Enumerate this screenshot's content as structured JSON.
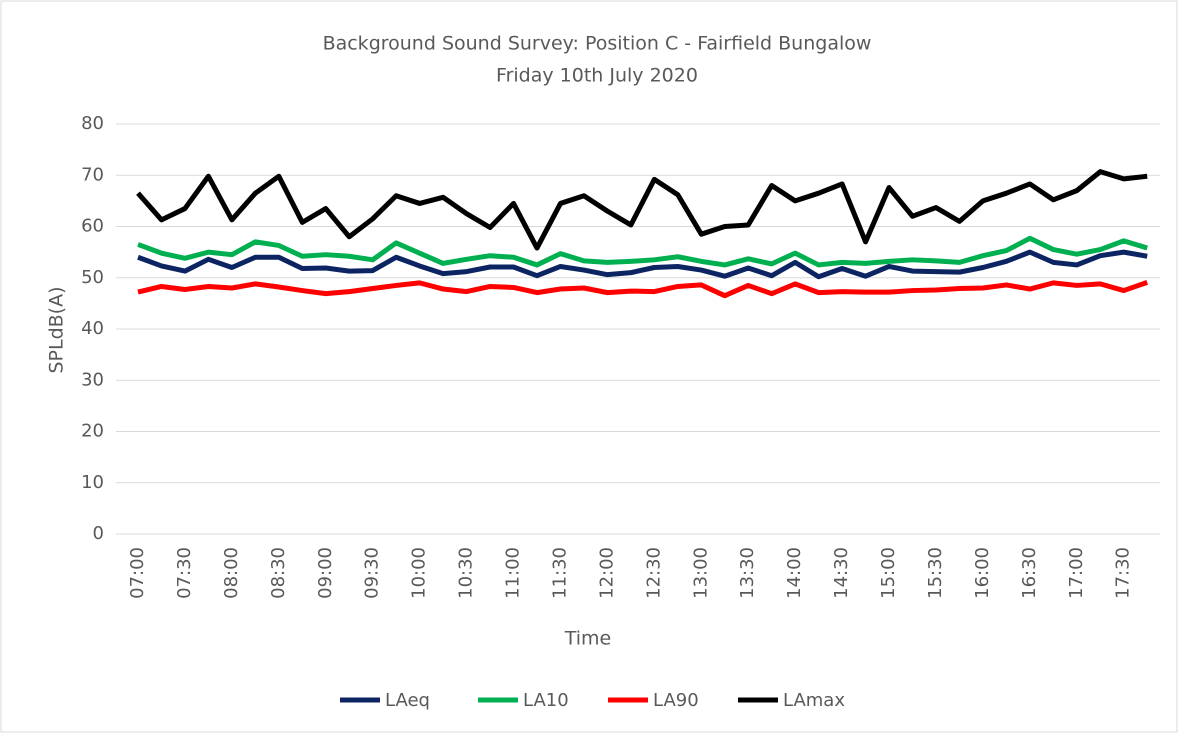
{
  "chart_data": {
    "type": "line",
    "title": "Background Sound Survey: Position C - Fairfield Bungalow",
    "subtitle": "Friday 10th July 2020",
    "x_label": "Time",
    "y_label": "SPLdB(A)",
    "categories": [
      "07:00",
      null,
      "07:30",
      null,
      "08:00",
      null,
      "08:30",
      null,
      "09:00",
      null,
      "09:30",
      null,
      "10:00",
      null,
      "10:30",
      null,
      "11:00",
      null,
      "11:30",
      null,
      "12:00",
      null,
      "12:30",
      null,
      "13:00",
      null,
      "13:30",
      null,
      "14:00",
      null,
      "14:30",
      null,
      "15:00",
      null,
      "15:30",
      null,
      "16:00",
      null,
      "16:30",
      null,
      "17:00",
      null,
      "17:30",
      null
    ],
    "series": [
      {
        "name": "LAeq",
        "color": "#0d2463",
        "values": [
          54,
          52.3,
          51.3,
          53.6,
          52,
          54,
          54,
          51.8,
          51.9,
          51.3,
          51.4,
          54,
          52.3,
          50.8,
          51.2,
          52.1,
          52.1,
          50.4,
          52.2,
          51.5,
          50.6,
          51,
          52,
          52.2,
          51.5,
          50.3,
          51.9,
          50.4,
          53,
          50.2,
          51.8,
          50.3,
          52.2,
          51.3,
          51.2,
          51.1,
          52,
          53.2,
          55,
          53,
          52.5,
          54.3,
          55,
          54.2
        ]
      },
      {
        "name": "LA10",
        "color": "#00b050",
        "values": [
          56.5,
          54.8,
          53.8,
          55,
          54.5,
          57,
          56.3,
          54.2,
          54.5,
          54.2,
          53.5,
          56.8,
          54.8,
          52.8,
          53.6,
          54.3,
          54,
          52.5,
          54.7,
          53.3,
          53,
          53.2,
          53.5,
          54.1,
          53.2,
          52.5,
          53.7,
          52.7,
          54.8,
          52.5,
          53,
          52.8,
          53.2,
          53.5,
          53.3,
          53,
          54.3,
          55.3,
          57.7,
          55.5,
          54.6,
          55.5,
          57.2,
          55.8
        ]
      },
      {
        "name": "LA90",
        "color": "#ff0000",
        "values": [
          47.2,
          48.3,
          47.7,
          48.3,
          48,
          48.8,
          48.2,
          47.5,
          46.9,
          47.3,
          47.9,
          48.5,
          49,
          47.8,
          47.3,
          48.3,
          48.1,
          47.1,
          47.8,
          48,
          47.1,
          47.4,
          47.3,
          48.3,
          48.6,
          46.5,
          48.5,
          46.9,
          48.8,
          47.1,
          47.3,
          47.2,
          47.2,
          47.5,
          47.6,
          47.9,
          48,
          48.6,
          47.8,
          49,
          48.5,
          48.8,
          47.5,
          49.1
        ]
      },
      {
        "name": "LAmax",
        "color": "#000000",
        "values": [
          66.5,
          61.3,
          63.5,
          69.8,
          61.3,
          66.5,
          69.8,
          60.8,
          63.5,
          58,
          61.5,
          66,
          64.5,
          65.7,
          62.5,
          59.8,
          64.5,
          55.8,
          64.5,
          66,
          63,
          60.3,
          69.2,
          66.2,
          58.5,
          60,
          60.3,
          68,
          65,
          66.5,
          68.3,
          57,
          67.6,
          62,
          63.7,
          61,
          65,
          66.5,
          68.3,
          65.2,
          67,
          70.7,
          69.3,
          69.8
        ]
      }
    ],
    "ylim": [
      0,
      80
    ],
    "yticks": [
      0,
      10,
      20,
      30,
      40,
      50,
      60,
      70,
      80
    ],
    "grid": true,
    "legend": "bottom"
  }
}
